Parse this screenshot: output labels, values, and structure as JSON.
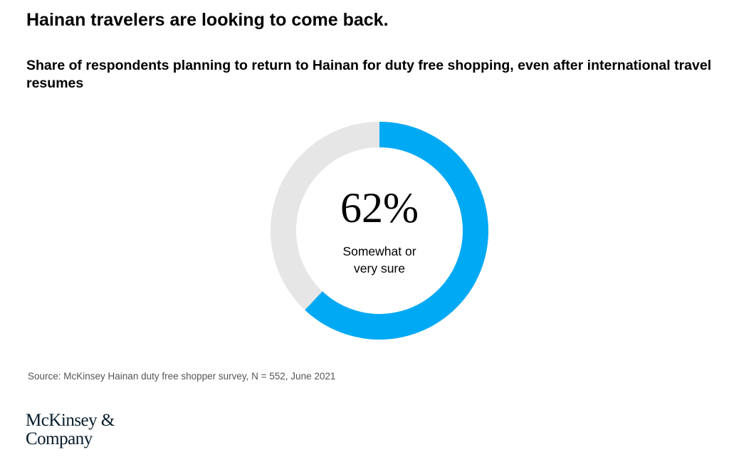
{
  "chart_data": {
    "type": "donut",
    "title": "Hainan travelers are looking to come back.",
    "subtitle": "Share of respondents planning to return to Hainan for duty free shopping, even after international travel resumes",
    "categories": [
      "Somewhat or very sure"
    ],
    "values": [
      62
    ],
    "value_labels": [
      "62%"
    ],
    "color": "#00a9f4",
    "source": "Source: McKinsey Hainan duty free shopper survey, N = 552, June 2021"
  },
  "logo": "McKinsey & Company"
}
